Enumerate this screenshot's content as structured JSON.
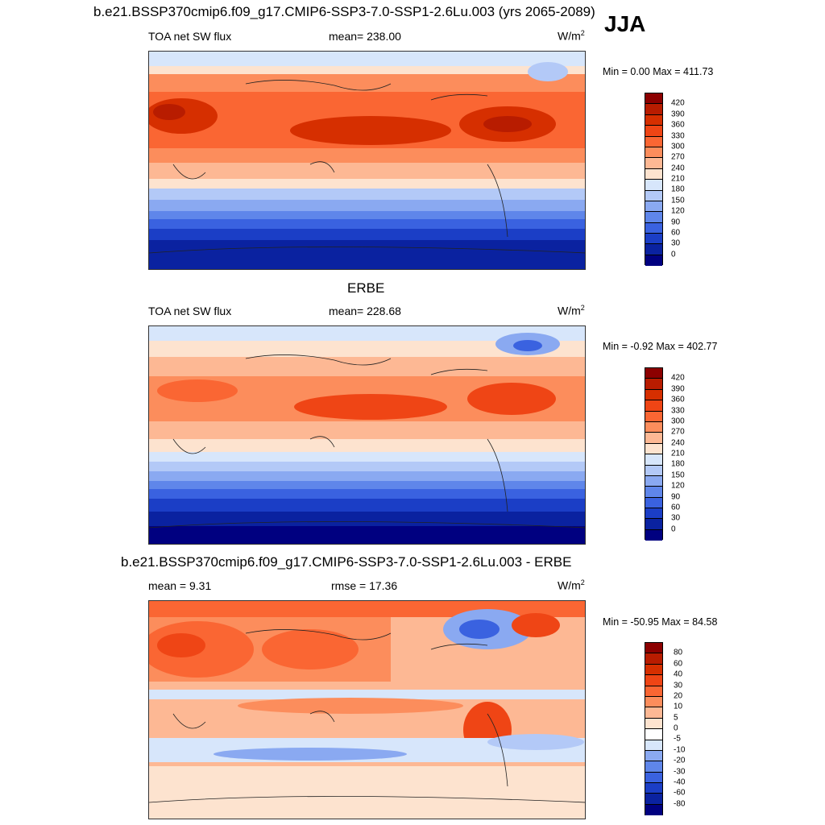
{
  "header": {
    "case_title": "b.e21.BSSP370cmip6.f09_g17.CMIP6-SSP3-7.0-SSP1-2.6Lu.003 (yrs 2065-2089)",
    "season": "JJA"
  },
  "panels": [
    {
      "title": "",
      "left_label": "TOA net SW flux",
      "center_label": "mean= 238.00",
      "units_base": "W/m",
      "units_exp": "2",
      "min_max": "Min =   0.00 Max = 411.73",
      "colorbar_ticks": [
        "420",
        "390",
        "360",
        "330",
        "300",
        "270",
        "240",
        "210",
        "180",
        "150",
        "120",
        "90",
        "60",
        "30",
        "0"
      ],
      "colorbar_colors": [
        "#8c0000",
        "#b81c00",
        "#d62f00",
        "#ef4515",
        "#fa6633",
        "#fc8d5c",
        "#fdb894",
        "#fde3cf",
        "#d7e6fb",
        "#b3c9f7",
        "#8aa9f1",
        "#5f86ea",
        "#3a62e0",
        "#1b3ec6",
        "#0a22a0",
        "#000080"
      ]
    },
    {
      "title": "ERBE",
      "left_label": "TOA net SW flux",
      "center_label": "mean= 228.68",
      "units_base": "W/m",
      "units_exp": "2",
      "min_max": "Min =  -0.92 Max = 402.77",
      "colorbar_ticks": [
        "420",
        "390",
        "360",
        "330",
        "300",
        "270",
        "240",
        "210",
        "180",
        "150",
        "120",
        "90",
        "60",
        "30",
        "0"
      ],
      "colorbar_colors": [
        "#8c0000",
        "#b81c00",
        "#d62f00",
        "#ef4515",
        "#fa6633",
        "#fc8d5c",
        "#fdb894",
        "#fde3cf",
        "#d7e6fb",
        "#b3c9f7",
        "#8aa9f1",
        "#5f86ea",
        "#3a62e0",
        "#1b3ec6",
        "#0a22a0",
        "#000080"
      ]
    },
    {
      "title": "b.e21.BSSP370cmip6.f09_g17.CMIP6-SSP3-7.0-SSP1-2.6Lu.003 - ERBE",
      "left_label": "mean =   9.31",
      "center_label": "rmse =  17.36",
      "units_base": "W/m",
      "units_exp": "2",
      "min_max": "Min = -50.95 Max =  84.58",
      "colorbar_ticks": [
        "80",
        "60",
        "40",
        "30",
        "20",
        "10",
        "5",
        "0",
        "-5",
        "-10",
        "-20",
        "-30",
        "-40",
        "-60",
        "-80"
      ],
      "colorbar_colors": [
        "#8c0000",
        "#b81c00",
        "#d62f00",
        "#ef4515",
        "#fa6633",
        "#fc8d5c",
        "#fdb894",
        "#fde3cf",
        "#ffffff",
        "#d7e6fb",
        "#8aa9f1",
        "#5f86ea",
        "#3a62e0",
        "#1b3ec6",
        "#0a22a0",
        "#000080"
      ]
    }
  ]
}
